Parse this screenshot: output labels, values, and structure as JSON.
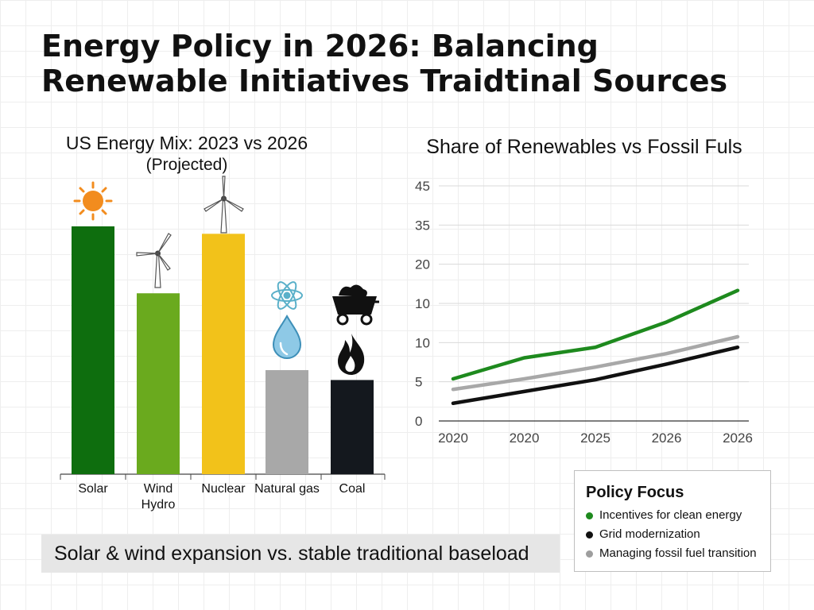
{
  "page": {
    "title_lines": [
      "Energy Policy in 2026: Balancing",
      "Renewable Initiatives Traidtinal Sources"
    ],
    "caption": "Solar & wind expansion vs. stable traditional baseload"
  },
  "policy_focus": {
    "heading": "Policy Focus",
    "items": [
      {
        "label": "Incentives for clean energy",
        "color": "#1e8a1e"
      },
      {
        "label": "Grid modernization",
        "color": "#111111"
      },
      {
        "label": "Managing fossil fuel transition",
        "color": "#9e9e9e"
      }
    ]
  },
  "chart_data": [
    {
      "type": "bar",
      "title": "US Energy Mix: 2023 vs 2026",
      "subtitle": "(Projected)",
      "categories": [
        "Solar",
        "Wind Hydro",
        "Nuclear",
        "Natural gas",
        "Coal"
      ],
      "values": [
        100,
        73,
        97,
        42,
        38
      ],
      "ylim": [
        0,
        100
      ],
      "colors": [
        "#0e6e0e",
        "#6aaa1e",
        "#f2c21a",
        "#a8a8a8",
        "#14181e"
      ],
      "icons": [
        "sun-icon",
        "wind-turbine-icon",
        "wind-turbine-icon",
        "atom-water-drop-icon",
        "coal-cart-flame-icon"
      ],
      "grid": false
    },
    {
      "type": "line",
      "title": "Share of Renewables vs Fossil Fuls",
      "categories": [
        "2020",
        "2020",
        "2025",
        "2026",
        "2026"
      ],
      "y_tick_labels": [
        "0",
        "5",
        "10",
        "10",
        "20",
        "35",
        "45"
      ],
      "ylim": [
        0,
        60
      ],
      "grid": true,
      "series": [
        {
          "color": "#1e8a1e",
          "values": [
            10,
            15,
            17.5,
            23.5,
            31
          ]
        },
        {
          "color": "#a8a8a8",
          "values": [
            7.5,
            10,
            12.8,
            16,
            20
          ]
        },
        {
          "color": "#111111",
          "values": [
            4.2,
            7,
            9.8,
            13.5,
            17.5
          ]
        }
      ]
    }
  ]
}
